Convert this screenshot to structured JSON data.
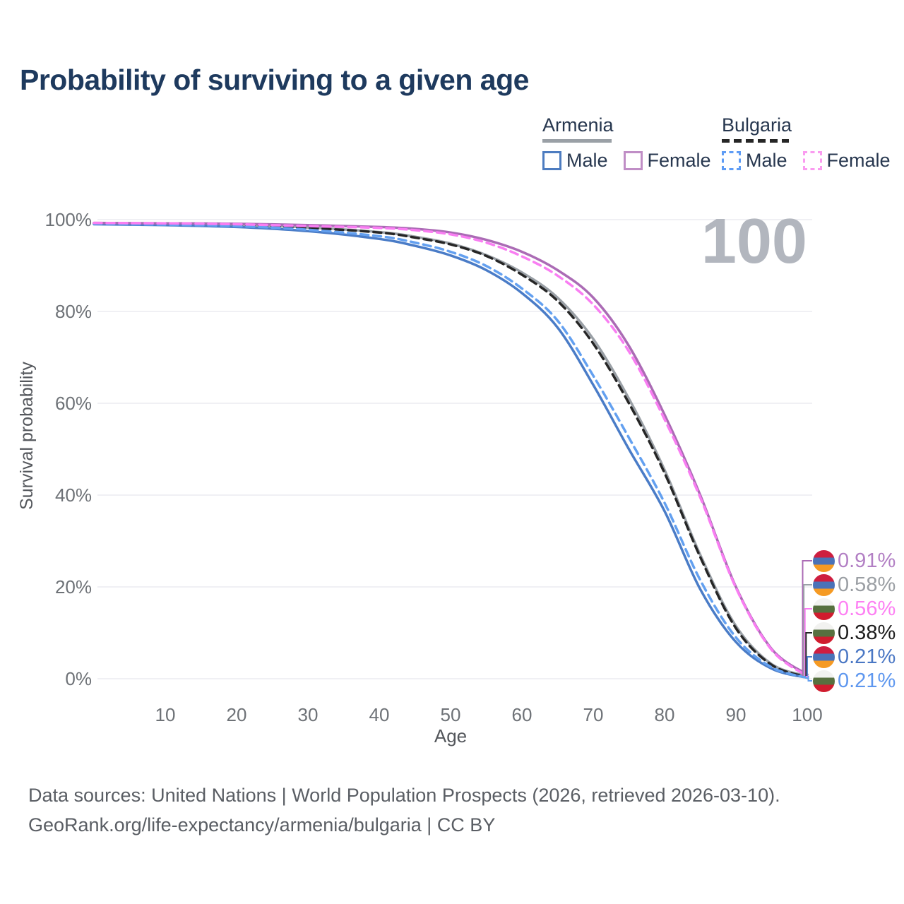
{
  "page": {
    "title": "Probability of surviving to a given age",
    "watermark_age": "100"
  },
  "legend": {
    "armenia": {
      "label": "Armenia",
      "line_style": "solid",
      "line_color": "#9aa0a6",
      "male": {
        "label": "Male",
        "color": "#4d7cc0"
      },
      "female": {
        "label": "Female",
        "color": "#c08ec6"
      }
    },
    "bulgaria": {
      "label": "Bulgaria",
      "line_style": "dashed",
      "line_color": "#262626",
      "male": {
        "label": "Male",
        "color": "#5e9cf5"
      },
      "female": {
        "label": "Female",
        "color": "#fa9cf0"
      }
    }
  },
  "chart_data": {
    "type": "line",
    "title": "Probability of surviving to a given age",
    "xlabel": "Age",
    "ylabel": "Survival probability",
    "xlim": [
      0,
      100
    ],
    "ylim": [
      0,
      100
    ],
    "grid": "horizontal-only",
    "legend_position": "top-right",
    "x_tick_values": [
      10,
      20,
      30,
      40,
      50,
      60,
      70,
      80,
      90,
      100
    ],
    "x_tick_labels": [
      "10",
      "20",
      "30",
      "40",
      "50",
      "60",
      "70",
      "80",
      "90",
      "100"
    ],
    "y_tick_values": [
      0,
      20,
      40,
      60,
      80,
      100
    ],
    "y_tick_labels": [
      "0%",
      "20%",
      "40%",
      "60%",
      "80%",
      "100%"
    ],
    "annotation_age": "100",
    "ages": [
      0,
      10,
      20,
      30,
      40,
      45,
      50,
      55,
      60,
      65,
      70,
      75,
      80,
      85,
      90,
      95,
      100
    ],
    "series": [
      {
        "id": "armenia-all",
        "name": "Armenia (both sexes)",
        "country": "Armenia",
        "sex": "Both",
        "color": "#9aa0a6",
        "dashed": false,
        "end_label": "0.58%",
        "values": [
          99.2,
          99.0,
          98.8,
          98.3,
          97.3,
          96.3,
          94.8,
          92.3,
          88.5,
          83.0,
          74.0,
          61.0,
          45.5,
          27.0,
          11.5,
          3.2,
          0.58
        ]
      },
      {
        "id": "bulgaria-all",
        "name": "Bulgaria (both sexes)",
        "country": "Bulgaria",
        "sex": "Both",
        "color": "#262626",
        "dashed": true,
        "end_label": "0.38%",
        "values": [
          99.2,
          99.0,
          98.8,
          98.2,
          97.2,
          96.1,
          94.6,
          92.1,
          88.0,
          82.3,
          73.0,
          60.0,
          44.8,
          26.5,
          11.0,
          3.0,
          0.38
        ]
      },
      {
        "id": "armenia-male",
        "name": "Armenia Male",
        "country": "Armenia",
        "sex": "Male",
        "color": "#4a7cc7",
        "dashed": false,
        "end_label": "0.21%",
        "values": [
          99.0,
          98.8,
          98.4,
          97.5,
          95.8,
          94.3,
          92.2,
          89.0,
          84.0,
          76.5,
          64.0,
          50.0,
          36.5,
          19.5,
          8.0,
          2.2,
          0.21
        ]
      },
      {
        "id": "bulgaria-male",
        "name": "Bulgaria Male",
        "country": "Bulgaria",
        "sex": "Male",
        "color": "#63a0f0",
        "dashed": true,
        "end_label": "0.21%",
        "values": [
          99.1,
          98.9,
          98.6,
          97.8,
          96.4,
          95.0,
          93.0,
          89.9,
          85.0,
          78.0,
          66.0,
          52.5,
          38.3,
          21.5,
          9.0,
          2.5,
          0.21
        ]
      },
      {
        "id": "armenia-female",
        "name": "Armenia Female",
        "country": "Armenia",
        "sex": "Female",
        "color": "#ab6bb5",
        "dashed": false,
        "end_label": "0.91%",
        "values": [
          99.3,
          99.2,
          99.1,
          98.8,
          98.4,
          98.0,
          97.2,
          95.6,
          93.0,
          89.0,
          83.0,
          72.5,
          57.5,
          40.0,
          20.0,
          6.5,
          0.91
        ]
      },
      {
        "id": "bulgaria-female",
        "name": "Bulgaria Female",
        "country": "Bulgaria",
        "sex": "Female",
        "color": "#f97ef2",
        "dashed": true,
        "end_label": "0.56%",
        "values": [
          99.3,
          99.2,
          99.0,
          98.6,
          98.2,
          97.7,
          96.8,
          95.0,
          92.0,
          87.8,
          81.5,
          71.3,
          56.5,
          39.5,
          19.8,
          6.3,
          0.56
        ]
      }
    ]
  },
  "end_labels": [
    {
      "value": "0.91%",
      "color": "#b27fc4",
      "line_color": "#ab6bb5",
      "flag": "armenia",
      "series": "armenia-female"
    },
    {
      "value": "0.58%",
      "color": "#9a9ea3",
      "line_color": "#9aa0a6",
      "flag": "armenia",
      "series": "armenia-all"
    },
    {
      "value": "0.56%",
      "color": "#fd80f3",
      "line_color": "#f97ef2",
      "flag": "bulgaria",
      "series": "bulgaria-female"
    },
    {
      "value": "0.38%",
      "color": "#1c1c1c",
      "line_color": "#262626",
      "flag": "bulgaria",
      "series": "bulgaria-all"
    },
    {
      "value": "0.21%",
      "color": "#4a77c4",
      "line_color": "#4a7cc7",
      "flag": "armenia",
      "series": "armenia-male"
    },
    {
      "value": "0.21%",
      "color": "#5e97ef",
      "line_color": "#63a0f0",
      "flag": "bulgaria",
      "series": "bulgaria-male"
    }
  ],
  "flags": {
    "armenia": [
      "#ce1e40",
      "#4a72b8",
      "#f59a23"
    ],
    "bulgaria": [
      "#f2f2f0",
      "#57703f",
      "#d01c2e"
    ]
  },
  "colors": {
    "title": "#1e3a5e",
    "tick_label": "#6e7277",
    "axis_title": "#54575c",
    "gridline": "#ececf0",
    "watermark": "#b2b6be"
  },
  "footer": {
    "line1": "Data sources: United Nations | World Population Prospects (2026, retrieved 2026-03-10).",
    "line2": "GeoRank.org/life-expectancy/armenia/bulgaria | CC BY"
  }
}
